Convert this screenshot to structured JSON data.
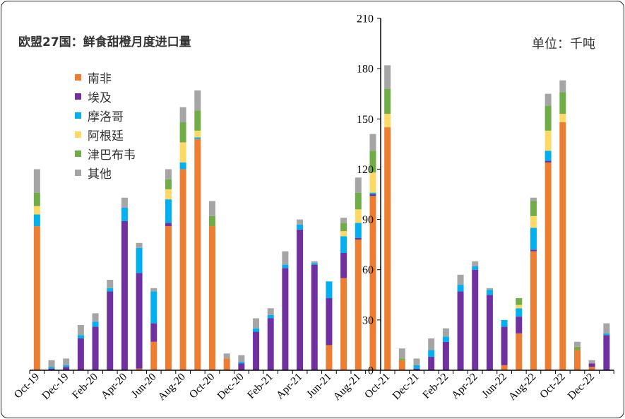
{
  "title": "欧盟27国：鲜食甜橙月度进口量",
  "unit_label": "单位：千吨",
  "colors": {
    "南非": "#ED7D31",
    "埃及": "#7030A0",
    "摩洛哥": "#00B0F0",
    "阿根廷": "#FFD966",
    "津巴布韦": "#70AD47",
    "其他": "#A5A5A5"
  },
  "chart_data": {
    "type": "bar",
    "stacked": true,
    "y_axis_position": "middle-right",
    "ylim": [
      0,
      210
    ],
    "yticks": [
      0,
      30,
      60,
      90,
      120,
      150,
      180,
      210
    ],
    "legend_position": "top-left",
    "categories": [
      "Oct-19",
      "Nov-19",
      "Dec-19",
      "Jan-20",
      "Feb-20",
      "Mar-20",
      "Apr-20",
      "May-20",
      "Jun-20",
      "Jul-20",
      "Aug-20",
      "Sep-20",
      "Oct-20",
      "Nov-20",
      "Dec-20",
      "Jan-21",
      "Feb-21",
      "Mar-21",
      "Apr-21",
      "May-21",
      "Jun-21",
      "Jul-21",
      "Aug-21",
      "Sep-21",
      "Oct-21",
      "Nov-21",
      "Dec-21",
      "Jan-22",
      "Feb-22",
      "Mar-22",
      "Apr-22",
      "May-22",
      "Jun-22",
      "Jul-22",
      "Aug-22",
      "Sep-22",
      "Oct-22",
      "Nov-22",
      "Dec-22",
      "Jan-23"
    ],
    "tick_labels": [
      "Oct-19",
      "Dec-19",
      "Feb-20",
      "Apr-20",
      "Jun-20",
      "Aug-20",
      "Oct-20",
      "Dec-20",
      "Feb-21",
      "Apr-21",
      "Jun-21",
      "Aug-21",
      "Oct-21",
      "Dec-21",
      "Feb-22",
      "Apr-22",
      "Jun-22",
      "Aug-22",
      "Oct-22",
      "Dec-22"
    ],
    "series": [
      {
        "name": "南非",
        "values": [
          86,
          0,
          0,
          0,
          0,
          0,
          0,
          1,
          17,
          86,
          120,
          138,
          86,
          7,
          0,
          0,
          0,
          0,
          0,
          0,
          15,
          55,
          78,
          104,
          145,
          6,
          0,
          0,
          0,
          0,
          0,
          0,
          3,
          22,
          71,
          124,
          148,
          12,
          2,
          0
        ]
      },
      {
        "name": "埃及",
        "values": [
          0,
          1,
          2,
          19,
          26,
          47,
          89,
          57,
          11,
          2,
          0,
          0,
          0,
          0,
          4,
          23,
          31,
          61,
          84,
          63,
          28,
          15,
          1,
          1,
          0,
          0,
          1,
          8,
          17,
          47,
          60,
          45,
          23,
          10,
          1,
          1,
          0,
          0,
          2,
          21
        ]
      },
      {
        "name": "摩洛哥",
        "values": [
          7,
          1,
          1,
          2,
          3,
          2,
          8,
          15,
          19,
          14,
          4,
          1,
          0,
          0,
          1,
          2,
          2,
          2,
          3,
          1,
          10,
          10,
          9,
          1,
          0,
          0,
          2,
          4,
          3,
          4,
          2,
          3,
          4,
          5,
          13,
          6,
          0,
          0,
          0,
          1
        ]
      },
      {
        "name": "阿根廷",
        "values": [
          5,
          0,
          0,
          0,
          0,
          0,
          0,
          0,
          0,
          6,
          12,
          4,
          0,
          0,
          0,
          0,
          0,
          0,
          0,
          0,
          0,
          3,
          8,
          12,
          8,
          0,
          0,
          0,
          0,
          0,
          0,
          0,
          0,
          2,
          7,
          12,
          5,
          0,
          0,
          0
        ]
      },
      {
        "name": "津巴布韦",
        "values": [
          8,
          0,
          0,
          0,
          0,
          0,
          0,
          0,
          0,
          6,
          12,
          12,
          6,
          0,
          0,
          0,
          0,
          0,
          0,
          0,
          0,
          5,
          10,
          13,
          15,
          1,
          0,
          0,
          0,
          0,
          0,
          0,
          0,
          4,
          9,
          15,
          13,
          2,
          0,
          0
        ]
      },
      {
        "name": "其他",
        "values": [
          14,
          4,
          4,
          6,
          5,
          5,
          6,
          3,
          2,
          6,
          9,
          12,
          9,
          3,
          4,
          6,
          4,
          8,
          3,
          1,
          0,
          3,
          9,
          10,
          14,
          6,
          4,
          7,
          5,
          6,
          3,
          1,
          0,
          0,
          2,
          7,
          7,
          3,
          2,
          6
        ]
      }
    ]
  }
}
